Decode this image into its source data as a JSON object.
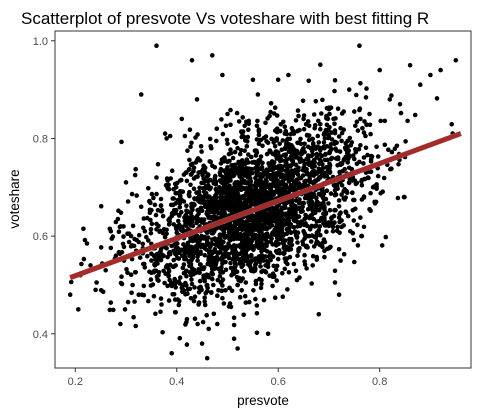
{
  "chart_data": {
    "type": "scatter",
    "title": "Scatterplot of presvote Vs voteshare with best fitting R",
    "xlabel": "presvote",
    "ylabel": "voteshare",
    "xlim": [
      0.16,
      0.98
    ],
    "ylim": [
      0.33,
      1.02
    ],
    "x_ticks": [
      {
        "value": 0.2,
        "label": "0.2"
      },
      {
        "value": 0.4,
        "label": "0.4"
      },
      {
        "value": 0.6,
        "label": "0.6"
      },
      {
        "value": 0.8,
        "label": "0.8"
      }
    ],
    "y_ticks": [
      {
        "value": 0.4,
        "label": "0.4"
      },
      {
        "value": 0.6,
        "label": "0.6"
      },
      {
        "value": 0.8,
        "label": "0.8"
      },
      {
        "value": 1.0,
        "label": "1.0"
      }
    ],
    "grid": false,
    "points_count_approx": 3000,
    "points_sample": [
      [
        0.19,
        0.48
      ],
      [
        0.21,
        0.52
      ],
      [
        0.23,
        0.54
      ],
      [
        0.24,
        0.49
      ],
      [
        0.26,
        0.53
      ],
      [
        0.27,
        0.61
      ],
      [
        0.28,
        0.56
      ],
      [
        0.29,
        0.62
      ],
      [
        0.3,
        0.71
      ],
      [
        0.31,
        0.6
      ],
      [
        0.32,
        0.57
      ],
      [
        0.33,
        0.66
      ],
      [
        0.33,
        0.89
      ],
      [
        0.35,
        0.55
      ],
      [
        0.36,
        0.99
      ],
      [
        0.36,
        0.72
      ],
      [
        0.37,
        0.46
      ],
      [
        0.38,
        0.8
      ],
      [
        0.39,
        0.36
      ],
      [
        0.4,
        0.62
      ],
      [
        0.41,
        0.84
      ],
      [
        0.42,
        0.43
      ],
      [
        0.43,
        0.96
      ],
      [
        0.44,
        0.88
      ],
      [
        0.45,
        0.38
      ],
      [
        0.46,
        0.35
      ],
      [
        0.47,
        0.97
      ],
      [
        0.48,
        0.42
      ],
      [
        0.49,
        0.93
      ],
      [
        0.5,
        0.85
      ],
      [
        0.52,
        0.37
      ],
      [
        0.55,
        0.92
      ],
      [
        0.56,
        0.89
      ],
      [
        0.58,
        0.4
      ],
      [
        0.6,
        0.92
      ],
      [
        0.62,
        0.93
      ],
      [
        0.65,
        0.84
      ],
      [
        0.68,
        0.44
      ],
      [
        0.7,
        0.86
      ],
      [
        0.72,
        0.48
      ],
      [
        0.74,
        0.9
      ],
      [
        0.78,
        0.85
      ],
      [
        0.8,
        0.94
      ],
      [
        0.82,
        0.88
      ],
      [
        0.84,
        0.87
      ],
      [
        0.86,
        0.95
      ],
      [
        0.88,
        0.91
      ],
      [
        0.9,
        0.93
      ],
      [
        0.92,
        0.94
      ],
      [
        0.95,
        0.96
      ]
    ],
    "fit_line": {
      "method": "linear",
      "color": "#a52a2a",
      "band_color": "#bebebe",
      "points": [
        [
          0.19,
          0.515
        ],
        [
          0.96,
          0.81
        ]
      ]
    }
  }
}
